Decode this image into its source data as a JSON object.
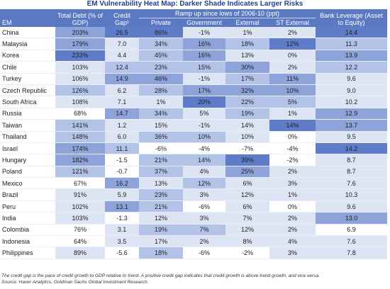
{
  "header": {
    "title": "EM Vulnerability Heat Map: Darker Shade Indicates Larger Risks"
  },
  "table": {
    "columns": [
      "EM",
      "Total Debt (% of GDP)",
      "Credit Gap¹",
      "Private",
      "Government",
      "External",
      "ST External",
      "Bank Leverage (Asset to Equity)"
    ],
    "group_header": "Ramp up since lows of 2006-10 (ppt)",
    "rows": [
      [
        "China",
        "203%",
        "26.5",
        "86%",
        "-1%",
        "1%",
        "2%",
        "14.4"
      ],
      [
        "Malaysia",
        "179%",
        "7.0",
        "34%",
        "16%",
        "18%",
        "12%",
        "11.3"
      ],
      [
        "Korea",
        "233%",
        "4.4",
        "45%",
        "16%",
        "13%",
        "0%",
        "13.9"
      ],
      [
        "Chile",
        "103%",
        "12.4",
        "23%",
        "15%",
        "30%",
        "2%",
        "12.2"
      ],
      [
        "Turkey",
        "106%",
        "14.9",
        "46%",
        "-1%",
        "17%",
        "11%",
        "9.6"
      ],
      [
        "Czech Republic",
        "126%",
        "6.2",
        "28%",
        "17%",
        "32%",
        "10%",
        "9.0"
      ],
      [
        "South Africa",
        "108%",
        "7.1",
        "1%",
        "20%",
        "22%",
        "5%",
        "10.2"
      ],
      [
        "Russia",
        "68%",
        "14.7",
        "34%",
        "5%",
        "19%",
        "1%",
        "12.9"
      ],
      [
        "Taiwan",
        "141%",
        "1.2",
        "15%",
        "-1%",
        "14%",
        "14%",
        "13.7"
      ],
      [
        "Thailand",
        "148%",
        "6.0",
        "36%",
        "10%",
        "10%",
        "0%",
        "9.5"
      ],
      [
        "Israel",
        "174%",
        "11.1",
        "-6%",
        "-4%",
        "-7%",
        "-4%",
        "14.2"
      ],
      [
        "Hungary",
        "182%",
        "-1.5",
        "21%",
        "14%",
        "39%",
        "-2%",
        "8.7"
      ],
      [
        "Poland",
        "121%",
        "-0.7",
        "37%",
        "4%",
        "25%",
        "2%",
        "8.7"
      ],
      [
        "Mexico",
        "67%",
        "16.2",
        "13%",
        "12%",
        "6%",
        "3%",
        "7.6"
      ],
      [
        "Brazil",
        "91%",
        "5.9",
        "23%",
        "3%",
        "12%",
        "1%",
        "10.3"
      ],
      [
        "Peru",
        "102%",
        "13.1",
        "21%",
        "-6%",
        "6%",
        "0%",
        "9.6"
      ],
      [
        "India",
        "103%",
        "-1.3",
        "12%",
        "3%",
        "7%",
        "2%",
        "13.0"
      ],
      [
        "Colombia",
        "76%",
        "3.1",
        "19%",
        "7%",
        "12%",
        "2%",
        "6.9"
      ],
      [
        "Indonesia",
        "64%",
        "3.5",
        "17%",
        "2%",
        "8%",
        "4%",
        "7.6"
      ],
      [
        "Philippines",
        "89%",
        "-5.6",
        "18%",
        "-6%",
        "-2%",
        "3%",
        "7.8"
      ]
    ],
    "cell_colors": [
      [
        "#ffffff",
        "#8ea3da",
        "#5f7cc9",
        "#5f7cc9",
        "#dde4f4",
        "#dde4f4",
        "#dde4f4",
        "#5f7cc9"
      ],
      [
        "#ffffff",
        "#8ea3da",
        "#dde4f4",
        "#b3c3e8",
        "#8ea3da",
        "#b3c3e8",
        "#5f7cc9",
        "#b3c3e8"
      ],
      [
        "#ffffff",
        "#5f7cc9",
        "#dde4f4",
        "#b3c3e8",
        "#8ea3da",
        "#dde4f4",
        "#dde4f4",
        "#8ea3da"
      ],
      [
        "#ffffff",
        "#dde4f4",
        "#b3c3e8",
        "#b3c3e8",
        "#b3c3e8",
        "#8ea3da",
        "#dde4f4",
        "#b3c3e8"
      ],
      [
        "#ffffff",
        "#dde4f4",
        "#8ea3da",
        "#8ea3da",
        "#dde4f4",
        "#b3c3e8",
        "#8ea3da",
        "#dde4f4"
      ],
      [
        "#ffffff",
        "#b3c3e8",
        "#dde4f4",
        "#b3c3e8",
        "#8ea3da",
        "#8ea3da",
        "#8ea3da",
        "#dde4f4"
      ],
      [
        "#ffffff",
        "#dde4f4",
        "#dde4f4",
        "#dde4f4",
        "#5f7cc9",
        "#b3c3e8",
        "#b3c3e8",
        "#dde4f4"
      ],
      [
        "#ffffff",
        "#ffffff",
        "#8ea3da",
        "#b3c3e8",
        "#dde4f4",
        "#b3c3e8",
        "#dde4f4",
        "#8ea3da"
      ],
      [
        "#ffffff",
        "#b3c3e8",
        "#dde4f4",
        "#dde4f4",
        "#dde4f4",
        "#dde4f4",
        "#5f7cc9",
        "#8ea3da"
      ],
      [
        "#ffffff",
        "#b3c3e8",
        "#dde4f4",
        "#b3c3e8",
        "#b3c3e8",
        "#dde4f4",
        "#ffffff",
        "#dde4f4"
      ],
      [
        "#ffffff",
        "#8ea3da",
        "#b3c3e8",
        "#ffffff",
        "#ffffff",
        "#ffffff",
        "#ffffff",
        "#5f7cc9"
      ],
      [
        "#ffffff",
        "#8ea3da",
        "#ffffff",
        "#b3c3e8",
        "#b3c3e8",
        "#5f7cc9",
        "#ffffff",
        "#dde4f4"
      ],
      [
        "#ffffff",
        "#b3c3e8",
        "#ffffff",
        "#b3c3e8",
        "#dde4f4",
        "#8ea3da",
        "#dde4f4",
        "#dde4f4"
      ],
      [
        "#ffffff",
        "#ffffff",
        "#8ea3da",
        "#dde4f4",
        "#b3c3e8",
        "#dde4f4",
        "#dde4f4",
        "#dde4f4"
      ],
      [
        "#ffffff",
        "#dde4f4",
        "#dde4f4",
        "#b3c3e8",
        "#dde4f4",
        "#dde4f4",
        "#dde4f4",
        "#dde4f4"
      ],
      [
        "#ffffff",
        "#dde4f4",
        "#8ea3da",
        "#b3c3e8",
        "#ffffff",
        "#dde4f4",
        "#ffffff",
        "#dde4f4"
      ],
      [
        "#ffffff",
        "#dde4f4",
        "#ffffff",
        "#dde4f4",
        "#dde4f4",
        "#dde4f4",
        "#dde4f4",
        "#8ea3da"
      ],
      [
        "#ffffff",
        "#ffffff",
        "#dde4f4",
        "#b3c3e8",
        "#b3c3e8",
        "#dde4f4",
        "#dde4f4",
        "#ffffff"
      ],
      [
        "#ffffff",
        "#ffffff",
        "#dde4f4",
        "#dde4f4",
        "#dde4f4",
        "#dde4f4",
        "#dde4f4",
        "#dde4f4"
      ],
      [
        "#ffffff",
        "#dde4f4",
        "#ffffff",
        "#b3c3e8",
        "#ffffff",
        "#ffffff",
        "#dde4f4",
        "#dde4f4"
      ]
    ]
  },
  "footnotes": [
    "The credit gap is the pace of credit growth to GDP relative to trend. A positive credit gap indicates that credit growth is above trend growth, and vice versa.",
    "Source: Haver Analytics, Goldman Sachs Global Investment Research."
  ]
}
